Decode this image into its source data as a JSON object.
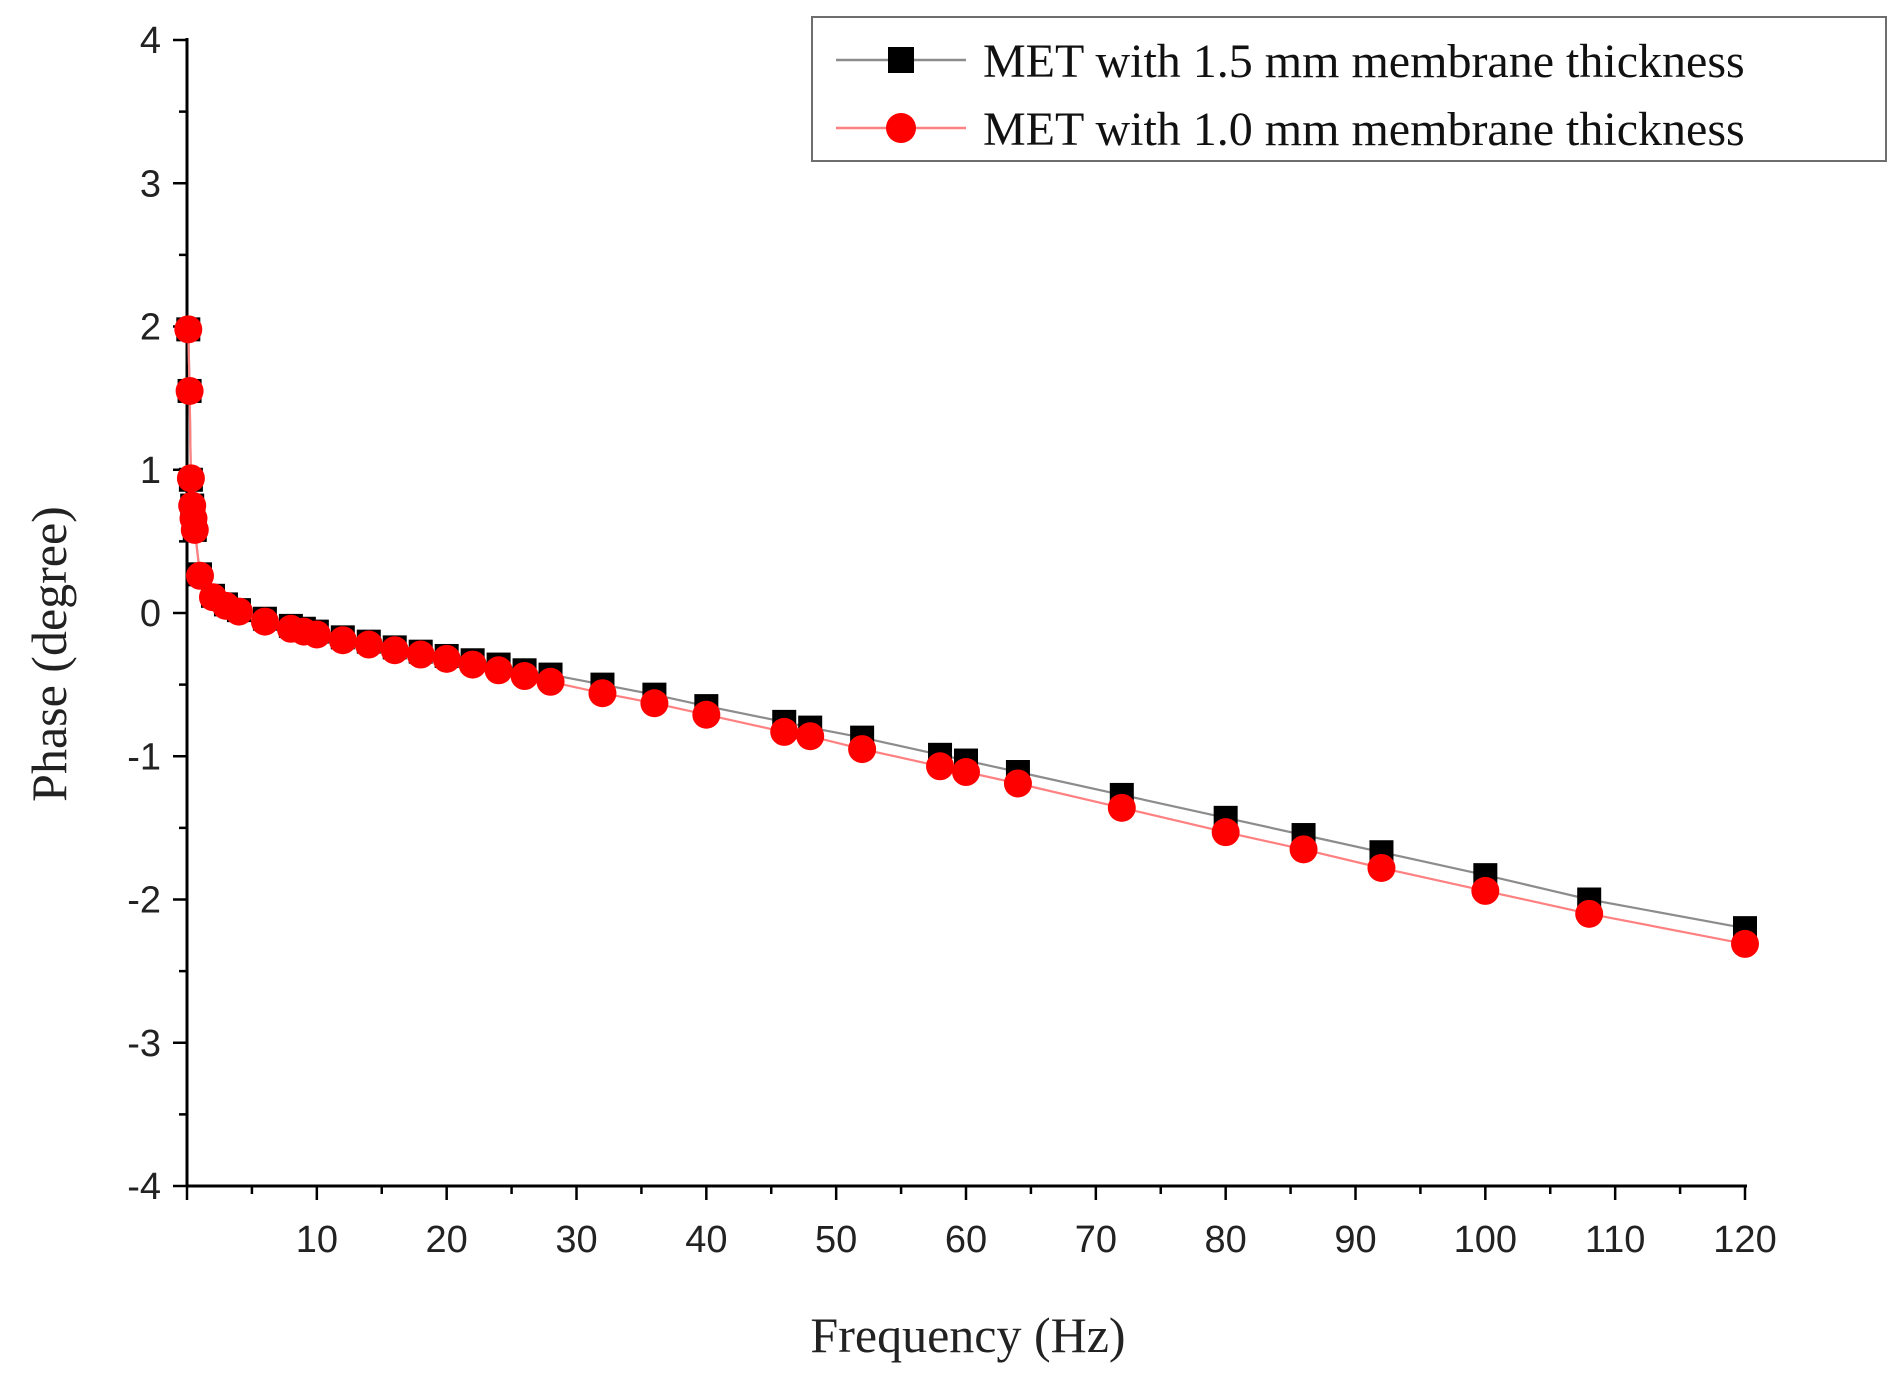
{
  "chart_data": {
    "type": "line",
    "title": "",
    "xlabel": "Frequency (Hz)",
    "ylabel": "Phase (degree)",
    "xlim": [
      0,
      120
    ],
    "ylim": [
      -4,
      4
    ],
    "xticks": [
      10,
      20,
      30,
      40,
      50,
      60,
      70,
      80,
      90,
      100,
      110,
      120
    ],
    "yticks": [
      -4,
      -3,
      -2,
      -1,
      0,
      1,
      2,
      3,
      4
    ],
    "grid": false,
    "legend_position": "top-right",
    "x": [
      0.1,
      0.2,
      0.3,
      0.4,
      0.5,
      0.6,
      1,
      2,
      3,
      4,
      6,
      8,
      9,
      10,
      12,
      14,
      16,
      18,
      20,
      22,
      24,
      26,
      28,
      32,
      36,
      40,
      46,
      48,
      52,
      58,
      60,
      64,
      72,
      80,
      86,
      92,
      100,
      108,
      120
    ],
    "series": [
      {
        "name": "MET with 1.5 mm membrane thickness",
        "marker": "square",
        "color": "#000000",
        "line_color": "#8c8c8c",
        "values": [
          1.98,
          1.55,
          0.93,
          0.75,
          0.66,
          0.58,
          0.27,
          0.12,
          0.06,
          0.02,
          -0.04,
          -0.09,
          -0.11,
          -0.13,
          -0.17,
          -0.2,
          -0.24,
          -0.27,
          -0.3,
          -0.33,
          -0.36,
          -0.4,
          -0.43,
          -0.5,
          -0.57,
          -0.65,
          -0.76,
          -0.8,
          -0.87,
          -0.99,
          -1.03,
          -1.11,
          -1.27,
          -1.43,
          -1.55,
          -1.67,
          -1.83,
          -2.0,
          -2.2
        ]
      },
      {
        "name": "MET with 1.0 mm membrane thickness",
        "marker": "circle",
        "color": "#ff0000",
        "line_color": "#ff8080",
        "values": [
          1.98,
          1.55,
          0.94,
          0.75,
          0.66,
          0.58,
          0.26,
          0.11,
          0.05,
          0.01,
          -0.06,
          -0.11,
          -0.13,
          -0.15,
          -0.19,
          -0.22,
          -0.26,
          -0.29,
          -0.32,
          -0.36,
          -0.4,
          -0.44,
          -0.48,
          -0.56,
          -0.63,
          -0.71,
          -0.83,
          -0.86,
          -0.95,
          -1.07,
          -1.11,
          -1.19,
          -1.36,
          -1.53,
          -1.65,
          -1.78,
          -1.94,
          -2.1,
          -2.31
        ]
      }
    ]
  }
}
